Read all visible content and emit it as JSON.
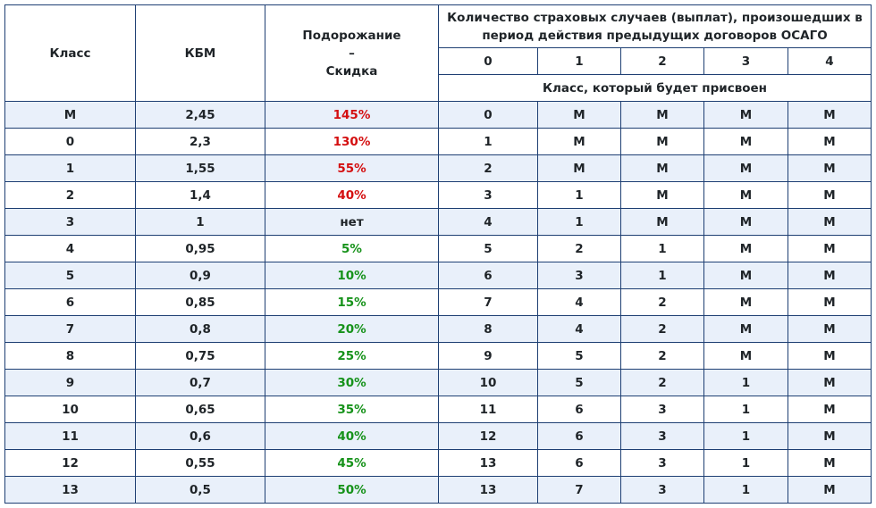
{
  "header": {
    "class": "Класс",
    "kbm": "КБМ",
    "change_line1": "Подорожание",
    "change_line2": "–",
    "change_line3": "Скидка",
    "events_title_line1": "Количество страховых случаев (выплат), произошедших в",
    "events_title_line2": "период действия предыдущих договоров ОСАГО",
    "events": [
      "0",
      "1",
      "2",
      "3",
      "4"
    ],
    "assigned_title": "Класс, который будет присвоен"
  },
  "colors": {
    "border": "#1e3f73",
    "stripe": "#e9f0fa",
    "increase": "#d40f10",
    "discount": "#16921a",
    "neutral": "#1f2428"
  },
  "rows": [
    {
      "class": "М",
      "kbm": "2,45",
      "change": "145%",
      "kind": "up",
      "next": [
        "0",
        "М",
        "М",
        "М",
        "М"
      ]
    },
    {
      "class": "0",
      "kbm": "2,3",
      "change": "130%",
      "kind": "up",
      "next": [
        "1",
        "М",
        "М",
        "М",
        "М"
      ]
    },
    {
      "class": "1",
      "kbm": "1,55",
      "change": "55%",
      "kind": "up",
      "next": [
        "2",
        "М",
        "М",
        "М",
        "М"
      ]
    },
    {
      "class": "2",
      "kbm": "1,4",
      "change": "40%",
      "kind": "up",
      "next": [
        "3",
        "1",
        "М",
        "М",
        "М"
      ]
    },
    {
      "class": "3",
      "kbm": "1",
      "change": "нет",
      "kind": "none",
      "next": [
        "4",
        "1",
        "М",
        "М",
        "М"
      ]
    },
    {
      "class": "4",
      "kbm": "0,95",
      "change": "5%",
      "kind": "down",
      "next": [
        "5",
        "2",
        "1",
        "М",
        "М"
      ]
    },
    {
      "class": "5",
      "kbm": "0,9",
      "change": "10%",
      "kind": "down",
      "next": [
        "6",
        "3",
        "1",
        "М",
        "М"
      ]
    },
    {
      "class": "6",
      "kbm": "0,85",
      "change": "15%",
      "kind": "down",
      "next": [
        "7",
        "4",
        "2",
        "М",
        "М"
      ]
    },
    {
      "class": "7",
      "kbm": "0,8",
      "change": "20%",
      "kind": "down",
      "next": [
        "8",
        "4",
        "2",
        "М",
        "М"
      ]
    },
    {
      "class": "8",
      "kbm": "0,75",
      "change": "25%",
      "kind": "down",
      "next": [
        "9",
        "5",
        "2",
        "М",
        "М"
      ]
    },
    {
      "class": "9",
      "kbm": "0,7",
      "change": "30%",
      "kind": "down",
      "next": [
        "10",
        "5",
        "2",
        "1",
        "М"
      ]
    },
    {
      "class": "10",
      "kbm": "0,65",
      "change": "35%",
      "kind": "down",
      "next": [
        "11",
        "6",
        "3",
        "1",
        "М"
      ]
    },
    {
      "class": "11",
      "kbm": "0,6",
      "change": "40%",
      "kind": "down",
      "next": [
        "12",
        "6",
        "3",
        "1",
        "М"
      ]
    },
    {
      "class": "12",
      "kbm": "0,55",
      "change": "45%",
      "kind": "down",
      "next": [
        "13",
        "6",
        "3",
        "1",
        "М"
      ]
    },
    {
      "class": "13",
      "kbm": "0,5",
      "change": "50%",
      "kind": "down",
      "next": [
        "13",
        "7",
        "3",
        "1",
        "М"
      ]
    }
  ]
}
